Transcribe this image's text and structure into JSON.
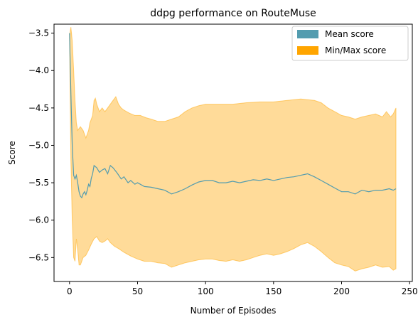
{
  "chart_data": {
    "type": "area",
    "title": "ddpg performance on RouteMuse",
    "xlabel": "Number of Episodes",
    "ylabel": "Score",
    "xlim": [
      -11.4,
      252
    ],
    "ylim": [
      -6.82,
      -3.38
    ],
    "xticks": [
      0,
      50,
      100,
      150,
      200,
      250
    ],
    "yticks": [
      -3.5,
      -4.0,
      -4.5,
      -5.0,
      -5.5,
      -6.0,
      -6.5
    ],
    "xtick_labels": [
      "0",
      "50",
      "100",
      "150",
      "200",
      "250"
    ],
    "ytick_labels": [
      "−3.5",
      "−4.0",
      "−4.5",
      "−5.0",
      "−5.5",
      "−6.0",
      "−6.5"
    ],
    "grid": false,
    "legend_position": "upper right",
    "colors": {
      "mean": "#539caf",
      "minmax": "#ffa500"
    },
    "series": [
      {
        "name": "Mean score",
        "role": "line",
        "points": [
          [
            0,
            -3.5
          ],
          [
            1,
            -4.3
          ],
          [
            2,
            -5.0
          ],
          [
            3,
            -5.4
          ],
          [
            4,
            -5.45
          ],
          [
            5,
            -5.4
          ],
          [
            6,
            -5.5
          ],
          [
            7,
            -5.62
          ],
          [
            8,
            -5.68
          ],
          [
            9,
            -5.7
          ],
          [
            10,
            -5.65
          ],
          [
            11,
            -5.62
          ],
          [
            12,
            -5.66
          ],
          [
            13,
            -5.6
          ],
          [
            14,
            -5.52
          ],
          [
            15,
            -5.55
          ],
          [
            16,
            -5.44
          ],
          [
            17,
            -5.38
          ],
          [
            18,
            -5.27
          ],
          [
            20,
            -5.3
          ],
          [
            22,
            -5.36
          ],
          [
            24,
            -5.33
          ],
          [
            26,
            -5.31
          ],
          [
            28,
            -5.38
          ],
          [
            30,
            -5.27
          ],
          [
            32,
            -5.3
          ],
          [
            35,
            -5.37
          ],
          [
            38,
            -5.45
          ],
          [
            40,
            -5.42
          ],
          [
            43,
            -5.5
          ],
          [
            45,
            -5.47
          ],
          [
            48,
            -5.52
          ],
          [
            50,
            -5.5
          ],
          [
            55,
            -5.55
          ],
          [
            60,
            -5.56
          ],
          [
            65,
            -5.58
          ],
          [
            70,
            -5.6
          ],
          [
            75,
            -5.65
          ],
          [
            80,
            -5.62
          ],
          [
            85,
            -5.58
          ],
          [
            90,
            -5.53
          ],
          [
            95,
            -5.49
          ],
          [
            100,
            -5.47
          ],
          [
            105,
            -5.47
          ],
          [
            110,
            -5.5
          ],
          [
            115,
            -5.5
          ],
          [
            120,
            -5.48
          ],
          [
            125,
            -5.5
          ],
          [
            130,
            -5.48
          ],
          [
            135,
            -5.46
          ],
          [
            140,
            -5.47
          ],
          [
            145,
            -5.45
          ],
          [
            150,
            -5.47
          ],
          [
            155,
            -5.45
          ],
          [
            160,
            -5.43
          ],
          [
            165,
            -5.42
          ],
          [
            170,
            -5.4
          ],
          [
            175,
            -5.38
          ],
          [
            180,
            -5.42
          ],
          [
            185,
            -5.47
          ],
          [
            190,
            -5.52
          ],
          [
            195,
            -5.57
          ],
          [
            200,
            -5.62
          ],
          [
            205,
            -5.62
          ],
          [
            210,
            -5.65
          ],
          [
            215,
            -5.6
          ],
          [
            220,
            -5.62
          ],
          [
            225,
            -5.6
          ],
          [
            230,
            -5.6
          ],
          [
            235,
            -5.58
          ],
          [
            238,
            -5.6
          ],
          [
            240,
            -5.58
          ]
        ]
      },
      {
        "name": "Min/Max score",
        "role": "band",
        "upper": [
          [
            0,
            -3.55
          ],
          [
            1,
            -3.42
          ],
          [
            2,
            -3.6
          ],
          [
            3,
            -4.0
          ],
          [
            4,
            -4.4
          ],
          [
            5,
            -4.7
          ],
          [
            6,
            -4.8
          ],
          [
            8,
            -4.75
          ],
          [
            10,
            -4.8
          ],
          [
            12,
            -4.9
          ],
          [
            14,
            -4.8
          ],
          [
            15,
            -4.7
          ],
          [
            17,
            -4.6
          ],
          [
            18,
            -4.4
          ],
          [
            19,
            -4.37
          ],
          [
            20,
            -4.45
          ],
          [
            22,
            -4.55
          ],
          [
            24,
            -4.5
          ],
          [
            26,
            -4.55
          ],
          [
            28,
            -4.5
          ],
          [
            30,
            -4.45
          ],
          [
            32,
            -4.4
          ],
          [
            34,
            -4.35
          ],
          [
            36,
            -4.45
          ],
          [
            38,
            -4.5
          ],
          [
            40,
            -4.53
          ],
          [
            44,
            -4.57
          ],
          [
            48,
            -4.6
          ],
          [
            52,
            -4.6
          ],
          [
            56,
            -4.63
          ],
          [
            60,
            -4.65
          ],
          [
            65,
            -4.68
          ],
          [
            70,
            -4.68
          ],
          [
            75,
            -4.65
          ],
          [
            80,
            -4.62
          ],
          [
            85,
            -4.55
          ],
          [
            90,
            -4.5
          ],
          [
            95,
            -4.47
          ],
          [
            100,
            -4.45
          ],
          [
            110,
            -4.45
          ],
          [
            120,
            -4.45
          ],
          [
            130,
            -4.43
          ],
          [
            140,
            -4.42
          ],
          [
            150,
            -4.42
          ],
          [
            160,
            -4.4
          ],
          [
            170,
            -4.38
          ],
          [
            180,
            -4.4
          ],
          [
            185,
            -4.43
          ],
          [
            190,
            -4.5
          ],
          [
            195,
            -4.55
          ],
          [
            200,
            -4.6
          ],
          [
            205,
            -4.62
          ],
          [
            210,
            -4.65
          ],
          [
            215,
            -4.62
          ],
          [
            220,
            -4.6
          ],
          [
            225,
            -4.58
          ],
          [
            230,
            -4.62
          ],
          [
            233,
            -4.55
          ],
          [
            236,
            -4.62
          ],
          [
            238,
            -4.58
          ],
          [
            240,
            -4.5
          ]
        ],
        "lower": [
          [
            0,
            -3.55
          ],
          [
            1,
            -5.2
          ],
          [
            2,
            -6.0
          ],
          [
            3,
            -6.5
          ],
          [
            4,
            -6.55
          ],
          [
            5,
            -6.25
          ],
          [
            6,
            -6.4
          ],
          [
            7,
            -6.6
          ],
          [
            8,
            -6.6
          ],
          [
            9,
            -6.55
          ],
          [
            10,
            -6.5
          ],
          [
            12,
            -6.47
          ],
          [
            14,
            -6.4
          ],
          [
            16,
            -6.32
          ],
          [
            18,
            -6.25
          ],
          [
            20,
            -6.22
          ],
          [
            22,
            -6.28
          ],
          [
            24,
            -6.3
          ],
          [
            26,
            -6.28
          ],
          [
            28,
            -6.25
          ],
          [
            30,
            -6.3
          ],
          [
            33,
            -6.35
          ],
          [
            36,
            -6.38
          ],
          [
            40,
            -6.43
          ],
          [
            45,
            -6.48
          ],
          [
            50,
            -6.52
          ],
          [
            55,
            -6.55
          ],
          [
            60,
            -6.55
          ],
          [
            65,
            -6.57
          ],
          [
            70,
            -6.58
          ],
          [
            75,
            -6.63
          ],
          [
            80,
            -6.6
          ],
          [
            85,
            -6.57
          ],
          [
            90,
            -6.55
          ],
          [
            95,
            -6.53
          ],
          [
            100,
            -6.52
          ],
          [
            105,
            -6.52
          ],
          [
            110,
            -6.54
          ],
          [
            115,
            -6.55
          ],
          [
            120,
            -6.53
          ],
          [
            125,
            -6.55
          ],
          [
            130,
            -6.53
          ],
          [
            135,
            -6.5
          ],
          [
            140,
            -6.47
          ],
          [
            145,
            -6.45
          ],
          [
            150,
            -6.47
          ],
          [
            155,
            -6.45
          ],
          [
            160,
            -6.42
          ],
          [
            165,
            -6.38
          ],
          [
            170,
            -6.33
          ],
          [
            175,
            -6.3
          ],
          [
            180,
            -6.35
          ],
          [
            185,
            -6.42
          ],
          [
            190,
            -6.5
          ],
          [
            195,
            -6.57
          ],
          [
            200,
            -6.6
          ],
          [
            205,
            -6.62
          ],
          [
            210,
            -6.68
          ],
          [
            215,
            -6.65
          ],
          [
            220,
            -6.63
          ],
          [
            225,
            -6.6
          ],
          [
            230,
            -6.63
          ],
          [
            235,
            -6.62
          ],
          [
            238,
            -6.67
          ],
          [
            240,
            -6.65
          ]
        ]
      }
    ]
  }
}
